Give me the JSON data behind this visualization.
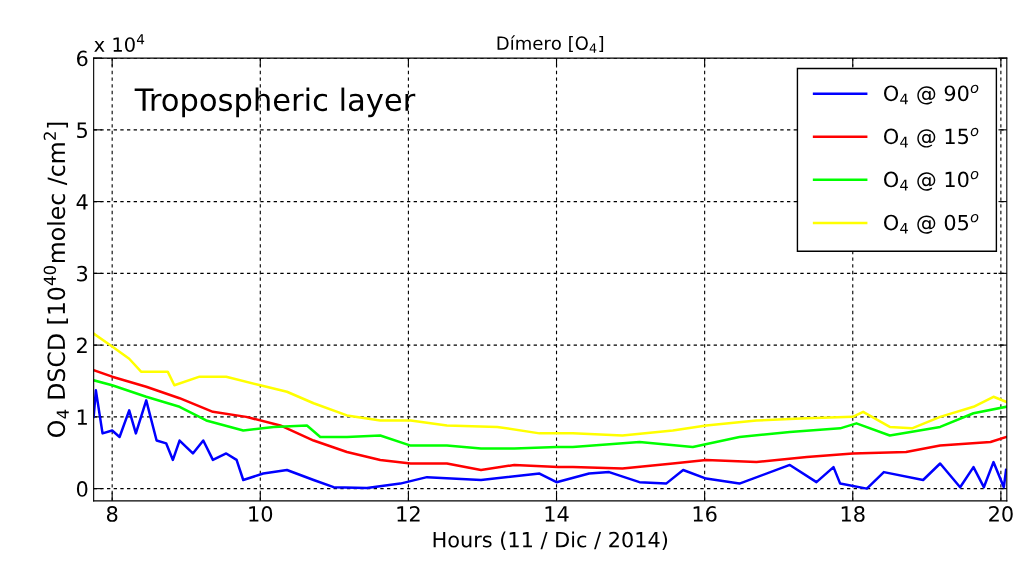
{
  "chart_data": {
    "type": "line",
    "title": "Dímero [O$_{4}$]",
    "xlabel": "Hours (11 / Dic / 2014)",
    "ylabel": "O$_{4}$ DSCD [10$^{40}$molec /cm$^{2}$]",
    "annotations": [
      "Tropospheric layer",
      "x 10$^{4}$"
    ],
    "xlim": [
      7.75,
      20.08
    ],
    "xticks": [
      8,
      10,
      12,
      14,
      16,
      18,
      20
    ],
    "ylim": [
      -0.17,
      6
    ],
    "yticks": [
      0,
      1,
      2,
      3,
      4,
      5,
      6
    ],
    "grid": true,
    "legend": "top right",
    "line_style": "solid",
    "marker": "none",
    "series": [
      {
        "name": "O$_{4}$ @ 90$^{o}$",
        "color": "#0000ff",
        "x": [
          7.75,
          7.78,
          7.87,
          8.0,
          8.1,
          8.23,
          8.32,
          8.46,
          8.6,
          8.73,
          8.82,
          8.91,
          9.09,
          9.23,
          9.36,
          9.54,
          9.68,
          9.77,
          10.04,
          10.36,
          10.72,
          10.99,
          11.44,
          11.89,
          12.25,
          12.98,
          13.77,
          14.0,
          14.44,
          14.71,
          15.12,
          15.48,
          15.71,
          16.02,
          16.47,
          17.15,
          17.51,
          17.74,
          17.83,
          18.19,
          18.42,
          18.95,
          19.18,
          19.45,
          19.63,
          19.77,
          19.9,
          20.04,
          20.07
        ],
        "values": [
          1.0,
          1.37,
          0.77,
          0.81,
          0.72,
          1.09,
          0.77,
          1.23,
          0.67,
          0.63,
          0.4,
          0.67,
          0.49,
          0.67,
          0.4,
          0.49,
          0.4,
          0.12,
          0.21,
          0.26,
          0.12,
          0.02,
          0.01,
          0.07,
          0.16,
          0.12,
          0.21,
          0.09,
          0.21,
          0.23,
          0.09,
          0.07,
          0.26,
          0.14,
          0.07,
          0.33,
          0.09,
          0.3,
          0.07,
          0.0,
          0.23,
          0.12,
          0.35,
          0.02,
          0.3,
          0.02,
          0.37,
          0.02,
          0.26
        ]
      },
      {
        "name": "O$_{4}$ @ 15$^{o}$",
        "color": "#ff0000",
        "x": [
          7.75,
          8.0,
          8.46,
          8.91,
          9.36,
          9.81,
          10.27,
          10.72,
          11.17,
          11.62,
          12.03,
          12.52,
          12.98,
          13.43,
          14.02,
          14.22,
          14.89,
          15.57,
          16.02,
          16.7,
          17.38,
          18.0,
          18.72,
          19.18,
          19.86,
          20.07
        ],
        "values": [
          1.65,
          1.56,
          1.42,
          1.26,
          1.07,
          1.0,
          0.88,
          0.67,
          0.51,
          0.4,
          0.35,
          0.35,
          0.26,
          0.33,
          0.3,
          0.3,
          0.28,
          0.35,
          0.4,
          0.37,
          0.44,
          0.49,
          0.51,
          0.6,
          0.65,
          0.72
        ]
      },
      {
        "name": "O$_{4}$ @ 10$^{o}$",
        "color": "#00ff00",
        "x": [
          7.75,
          8.0,
          8.46,
          8.91,
          9.27,
          9.77,
          10.18,
          10.63,
          10.81,
          11.17,
          11.62,
          12.03,
          12.52,
          12.98,
          13.43,
          14.0,
          14.22,
          15.12,
          15.84,
          16.47,
          17.15,
          17.83,
          18.05,
          18.5,
          19.18,
          19.63,
          20.07
        ],
        "values": [
          1.51,
          1.44,
          1.28,
          1.14,
          0.95,
          0.81,
          0.86,
          0.88,
          0.72,
          0.72,
          0.74,
          0.6,
          0.6,
          0.56,
          0.56,
          0.58,
          0.58,
          0.65,
          0.58,
          0.72,
          0.79,
          0.84,
          0.91,
          0.74,
          0.86,
          1.05,
          1.14
        ]
      },
      {
        "name": "O$_{4}$ @ 05$^{o}$",
        "color": "#ffff00",
        "x": [
          7.75,
          8.0,
          8.23,
          8.39,
          8.75,
          8.84,
          9.18,
          9.54,
          10.0,
          10.36,
          10.72,
          11.17,
          11.62,
          12.03,
          12.52,
          13.2,
          13.77,
          14.22,
          14.89,
          15.57,
          16.02,
          16.7,
          17.38,
          18.0,
          18.14,
          18.5,
          18.8,
          19.18,
          19.63,
          19.9,
          20.07
        ],
        "values": [
          2.16,
          1.98,
          1.81,
          1.63,
          1.63,
          1.44,
          1.56,
          1.56,
          1.44,
          1.35,
          1.19,
          1.02,
          0.95,
          0.95,
          0.88,
          0.86,
          0.77,
          0.77,
          0.74,
          0.81,
          0.88,
          0.95,
          0.98,
          1.0,
          1.07,
          0.86,
          0.84,
          1.0,
          1.14,
          1.28,
          1.21
        ]
      }
    ]
  }
}
